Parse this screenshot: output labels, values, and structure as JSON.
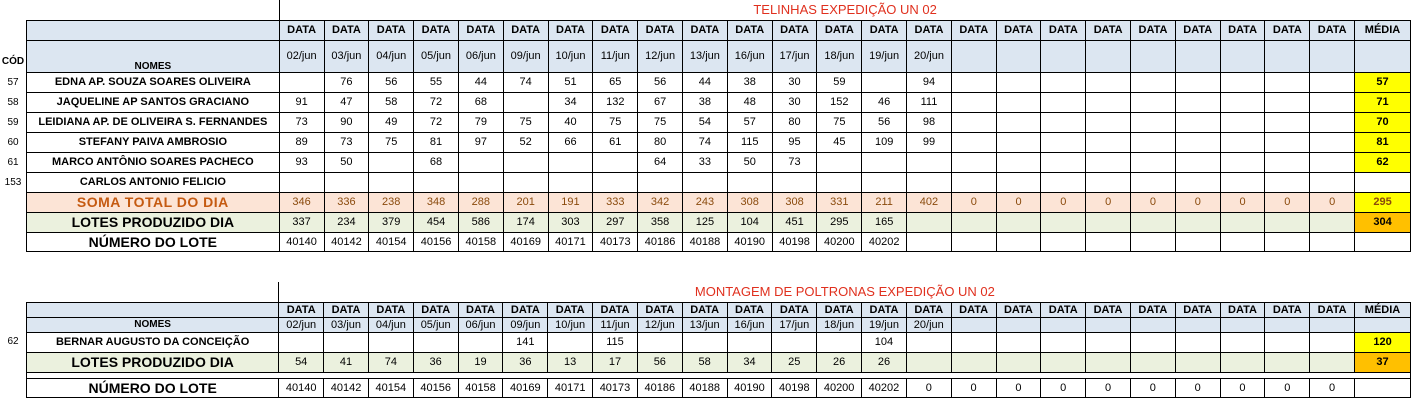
{
  "cod_header": "CÓD",
  "colors": {
    "header_fill": "#dce6f1",
    "title_red": "#e0301e",
    "avg_yellow": "#ffff00",
    "avg_orange": "#ffc000",
    "soma_fill": "#fce4d6",
    "lotes_fill": "#ebf1de"
  },
  "section1": {
    "title": "TELINHAS EXPEDIÇÃO UN 02",
    "names_header": "NOMES",
    "data_label": "DATA",
    "media_label": "MÉDIA",
    "dates": [
      "02/jun",
      "03/jun",
      "04/jun",
      "05/jun",
      "06/jun",
      "09/jun",
      "10/jun",
      "11/jun",
      "12/jun",
      "13/jun",
      "16/jun",
      "17/jun",
      "18/jun",
      "19/jun",
      "20/jun",
      "",
      "",
      "",
      "",
      "",
      "",
      "",
      "",
      ""
    ],
    "rows": [
      {
        "cod": "57",
        "name": "EDNA AP. SOUZA SOARES OLIVEIRA",
        "values": [
          "",
          "76",
          "56",
          "55",
          "44",
          "74",
          "51",
          "65",
          "56",
          "44",
          "38",
          "30",
          "59",
          "",
          "94",
          "",
          "",
          "",
          "",
          "",
          "",
          "",
          "",
          ""
        ],
        "avg": "57"
      },
      {
        "cod": "58",
        "name": "JAQUELINE AP SANTOS GRACIANO",
        "values": [
          "91",
          "47",
          "58",
          "72",
          "68",
          "",
          "34",
          "132",
          "67",
          "38",
          "48",
          "30",
          "152",
          "46",
          "111",
          "",
          "",
          "",
          "",
          "",
          "",
          "",
          "",
          ""
        ],
        "avg": "71"
      },
      {
        "cod": "59",
        "name": "LEIDIANA AP. DE OLIVEIRA S. FERNANDES",
        "values": [
          "73",
          "90",
          "49",
          "72",
          "79",
          "75",
          "40",
          "75",
          "75",
          "54",
          "57",
          "80",
          "75",
          "56",
          "98",
          "",
          "",
          "",
          "",
          "",
          "",
          "",
          "",
          ""
        ],
        "avg": "70"
      },
      {
        "cod": "60",
        "name": "STEFANY PAIVA AMBROSIO",
        "values": [
          "89",
          "73",
          "75",
          "81",
          "97",
          "52",
          "66",
          "61",
          "80",
          "74",
          "115",
          "95",
          "45",
          "109",
          "99",
          "",
          "",
          "",
          "",
          "",
          "",
          "",
          "",
          ""
        ],
        "avg": "81"
      },
      {
        "cod": "61",
        "name": "MARCO ANTÔNIO SOARES PACHECO",
        "values": [
          "93",
          "50",
          "",
          "68",
          "",
          "",
          "",
          "",
          "64",
          "33",
          "50",
          "73",
          "",
          "",
          "",
          "",
          "",
          "",
          "",
          "",
          "",
          "",
          "",
          ""
        ],
        "avg": "62"
      },
      {
        "cod": "153",
        "name": "CARLOS ANTONIO FELICIO",
        "values": [
          "",
          "",
          "",
          "",
          "",
          "",
          "",
          "",
          "",
          "",
          "",
          "",
          "",
          "",
          "",
          "",
          "",
          "",
          "",
          "",
          "",
          "",
          "",
          ""
        ],
        "avg": ""
      }
    ],
    "soma": {
      "label": "SOMA TOTAL DO DIA",
      "values": [
        "346",
        "336",
        "238",
        "348",
        "288",
        "201",
        "191",
        "333",
        "342",
        "243",
        "308",
        "308",
        "331",
        "211",
        "402",
        "0",
        "0",
        "0",
        "0",
        "0",
        "0",
        "0",
        "0",
        "0"
      ],
      "avg": "295"
    },
    "lotes": {
      "label": "LOTES PRODUZIDO DIA",
      "values": [
        "337",
        "234",
        "379",
        "454",
        "586",
        "174",
        "303",
        "297",
        "358",
        "125",
        "104",
        "451",
        "295",
        "165",
        "",
        "",
        "",
        "",
        "",
        "",
        "",
        "",
        "",
        ""
      ],
      "avg": "304"
    },
    "lote_num": {
      "label": "NÚMERO DO LOTE",
      "values": [
        "40140",
        "40142",
        "40154",
        "40156",
        "40158",
        "40169",
        "40171",
        "40173",
        "40186",
        "40188",
        "40190",
        "40198",
        "40200",
        "40202",
        "",
        "",
        "",
        "",
        "",
        "",
        "",
        "",
        "",
        ""
      ],
      "avg": ""
    }
  },
  "section2": {
    "title": "MONTAGEM DE POLTRONAS EXPEDIÇÃO UN 02",
    "names_header": "NOMES",
    "data_label": "DATA",
    "media_label": "MÉDIA",
    "dates": [
      "02/jun",
      "03/jun",
      "04/jun",
      "05/jun",
      "06/jun",
      "09/jun",
      "10/jun",
      "11/jun",
      "12/jun",
      "13/jun",
      "16/jun",
      "17/jun",
      "18/jun",
      "19/jun",
      "20/jun",
      "",
      "",
      "",
      "",
      "",
      "",
      "",
      "",
      ""
    ],
    "rows": [
      {
        "cod": "62",
        "name": "BERNAR AUGUSTO DA CONCEIÇÃO",
        "values": [
          "",
          "",
          "",
          "",
          "",
          "141",
          "",
          "115",
          "",
          "",
          "",
          "",
          "",
          "104",
          "",
          "",
          "",
          "",
          "",
          "",
          "",
          "",
          "",
          ""
        ],
        "avg": "120"
      }
    ],
    "lotes": {
      "label": "LOTES PRODUZIDO DIA",
      "values": [
        "54",
        "41",
        "74",
        "36",
        "19",
        "36",
        "13",
        "17",
        "56",
        "58",
        "34",
        "25",
        "26",
        "26",
        "",
        "",
        "",
        "",
        "",
        "",
        "",
        "",
        "",
        ""
      ],
      "avg": "37"
    },
    "lote_num": {
      "label": "NÚMERO DO LOTE",
      "values": [
        "40140",
        "40142",
        "40154",
        "40156",
        "40158",
        "40169",
        "40171",
        "40173",
        "40186",
        "40188",
        "40190",
        "40198",
        "40200",
        "40202",
        "0",
        "0",
        "0",
        "0",
        "0",
        "0",
        "0",
        "0",
        "0",
        "0"
      ],
      "avg": ""
    }
  }
}
